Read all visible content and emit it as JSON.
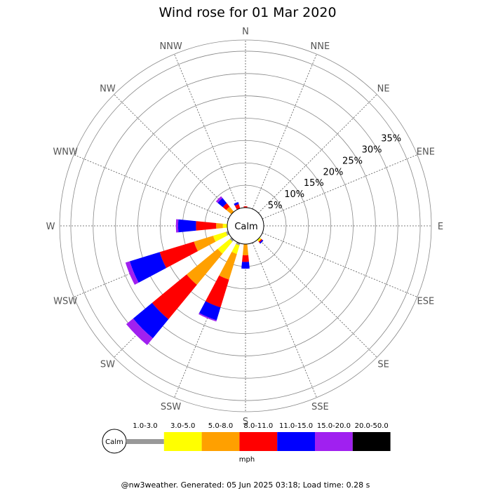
{
  "chart_data": {
    "type": "wind-rose",
    "title": "Wind rose for 01 Mar 2020",
    "calm_label": "Calm",
    "directions": [
      "N",
      "NNE",
      "NE",
      "ENE",
      "E",
      "ESE",
      "SE",
      "SSE",
      "S",
      "SSW",
      "SW",
      "WSW",
      "W",
      "WNW",
      "NW",
      "NNW"
    ],
    "rings": [
      "5%",
      "10%",
      "15%",
      "20%",
      "25%",
      "30%",
      "35%"
    ],
    "unit": "mph",
    "speed_bins": [
      {
        "label": "1.0-3.0",
        "color": "#999999"
      },
      {
        "label": "3.0-5.0",
        "color": "#ffff00"
      },
      {
        "label": "5.0-8.0",
        "color": "#ffa000"
      },
      {
        "label": "8.0-11.0",
        "color": "#ff0000"
      },
      {
        "label": "11.0-15.0",
        "color": "#0000ff"
      },
      {
        "label": "15.0-20.0",
        "color": "#a020f0"
      },
      {
        "label": "20.0-50.0",
        "color": "#000000"
      }
    ],
    "series": [
      {
        "direction": "N",
        "values": [
          0,
          0,
          0,
          0.3,
          0,
          0,
          0
        ]
      },
      {
        "direction": "NNE",
        "values": [
          0,
          0,
          0,
          0,
          0,
          0,
          0
        ]
      },
      {
        "direction": "NE",
        "values": [
          0,
          0,
          0,
          0,
          0,
          0,
          0
        ]
      },
      {
        "direction": "ENE",
        "values": [
          0,
          0,
          0,
          0,
          0,
          0,
          0
        ]
      },
      {
        "direction": "E",
        "values": [
          0,
          0,
          0,
          0,
          0,
          0,
          0
        ]
      },
      {
        "direction": "ESE",
        "values": [
          0,
          0,
          0,
          0,
          0,
          0,
          0
        ]
      },
      {
        "direction": "SE",
        "values": [
          0,
          0.5,
          0,
          0.3,
          0.3,
          0,
          0
        ]
      },
      {
        "direction": "SSE",
        "values": [
          0,
          0,
          0,
          0,
          0,
          0,
          0
        ]
      },
      {
        "direction": "S",
        "values": [
          0,
          0,
          2.5,
          1.5,
          1.5,
          0,
          0
        ]
      },
      {
        "direction": "SSW",
        "values": [
          0.5,
          2,
          6,
          6.5,
          3,
          0.3,
          0
        ]
      },
      {
        "direction": "SW",
        "values": [
          0.5,
          3.5,
          9,
          10,
          5.5,
          2,
          0
        ]
      },
      {
        "direction": "WSW",
        "values": [
          0.5,
          3,
          4.5,
          8,
          7,
          1,
          0
        ]
      },
      {
        "direction": "W",
        "values": [
          0,
          1,
          1.5,
          4.5,
          4,
          0.5,
          0
        ]
      },
      {
        "direction": "WNW",
        "values": [
          0,
          0,
          0,
          0,
          0,
          0,
          0
        ]
      },
      {
        "direction": "NW",
        "values": [
          0,
          0,
          1.5,
          1,
          1.5,
          0.5,
          0
        ]
      },
      {
        "direction": "NNW",
        "values": [
          0,
          0,
          0,
          1,
          0.5,
          0,
          0
        ]
      }
    ],
    "rmax": 37.5
  },
  "footer": "@nw3weather. Generated: 05 Jun 2025 03:18; Load time: 0.28 s"
}
